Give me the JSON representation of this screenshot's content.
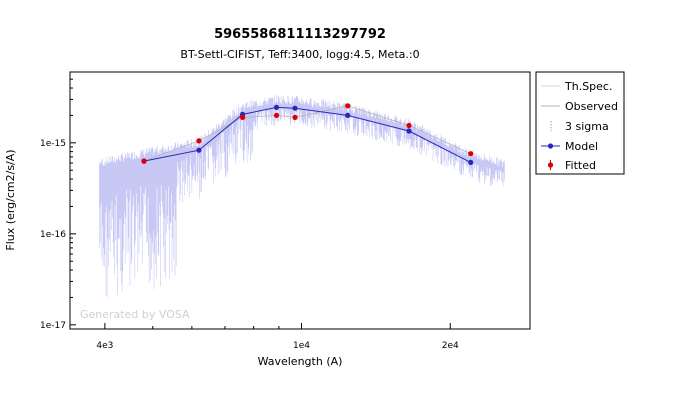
{
  "chart_data": {
    "type": "line",
    "title": "5965586811113297792",
    "subtitle": "BT-Settl-CIFIST, Teff:3400, logg:4.5, Meta.:0",
    "xlabel": "Wavelength (A)",
    "ylabel": "Flux (erg/cm2/s/A)",
    "x_scale": "log",
    "y_scale": "log",
    "xlim": [
      3400,
      29000
    ],
    "ylim": [
      9e-18,
      6e-15
    ],
    "x_ticks": [
      {
        "value": 4000,
        "label": "4e3"
      },
      {
        "value": 10000,
        "label": "1e4"
      },
      {
        "value": 20000,
        "label": "2e4"
      }
    ],
    "y_ticks": [
      {
        "value": 1e-17,
        "label": "1e-17"
      },
      {
        "value": 1e-16,
        "label": "1e-16"
      },
      {
        "value": 1e-15,
        "label": "1e-15"
      }
    ],
    "legend": {
      "position": "right",
      "entries": [
        "Th.Spec.",
        "Observed",
        "3 sigma",
        "Model",
        "Fitted"
      ]
    },
    "watermark": "Generated by VOSA",
    "colors": {
      "spectrum": "#c8c8f5",
      "observed": "#b4b4b4",
      "model": "#2828b4",
      "fitted": "#dc0000"
    },
    "series": [
      {
        "name": "Model",
        "x": [
          4800,
          6200,
          7600,
          8900,
          9700,
          12400,
          16500,
          22000
        ],
        "y": [
          6.3e-16,
          8.3e-16,
          2.05e-15,
          2.45e-15,
          2.4e-15,
          2e-15,
          1.35e-15,
          6.1e-16
        ]
      },
      {
        "name": "Observed",
        "x": [
          4800,
          6200,
          7600,
          8900,
          9700,
          12400,
          16500,
          22000
        ],
        "y": [
          6.3e-16,
          1.05e-15,
          1.9e-15,
          2e-15,
          1.9e-15,
          2.55e-15,
          1.55e-15,
          7.6e-16
        ]
      },
      {
        "name": "Fitted",
        "x": [
          4800,
          6200,
          7600,
          8900,
          9700,
          12400,
          16500,
          22000
        ],
        "y": [
          6.3e-16,
          1.05e-15,
          1.9e-15,
          2e-15,
          1.9e-15,
          2.55e-15,
          1.55e-15,
          7.6e-16
        ]
      }
    ]
  }
}
